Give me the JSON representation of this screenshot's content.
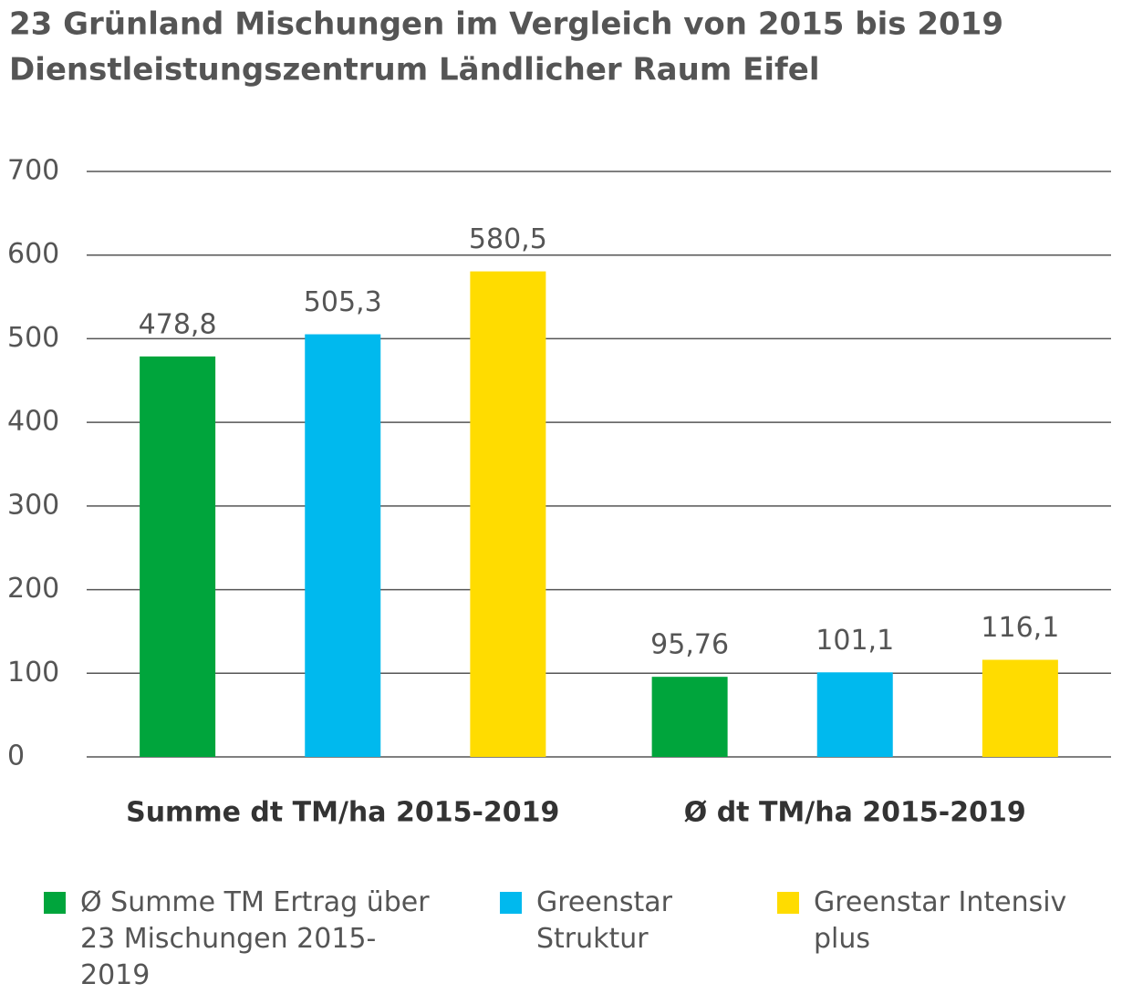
{
  "chart_data": {
    "type": "bar",
    "title": "23 Grünland Mischungen im Vergleich von 2015 bis 2019",
    "subtitle": "Dienstleistungszentrum Ländlicher Raum Eifel",
    "categories": [
      "Summe dt TM/ha 2015-2019",
      "Ø dt TM/ha 2015-2019"
    ],
    "series": [
      {
        "name": "Ø Summe TM Ertrag über 23 Mischungen 2015-2019",
        "color": "#00a53c",
        "values": [
          478.8,
          95.76
        ],
        "value_labels": [
          "478,8",
          "95,76"
        ]
      },
      {
        "name": "Greenstar Struktur",
        "color": "#00b9ee",
        "values": [
          505.3,
          101.1
        ],
        "value_labels": [
          "505,3",
          "101,1"
        ]
      },
      {
        "name": "Greenstar Intensiv plus",
        "color": "#ffdc00",
        "values": [
          580.5,
          116.1
        ],
        "value_labels": [
          "580,5",
          "116,1"
        ]
      }
    ],
    "ylim": [
      0,
      700
    ],
    "yticks": [
      0,
      100,
      200,
      300,
      400,
      500,
      600,
      700
    ],
    "grid": true,
    "legend": "bottom"
  }
}
